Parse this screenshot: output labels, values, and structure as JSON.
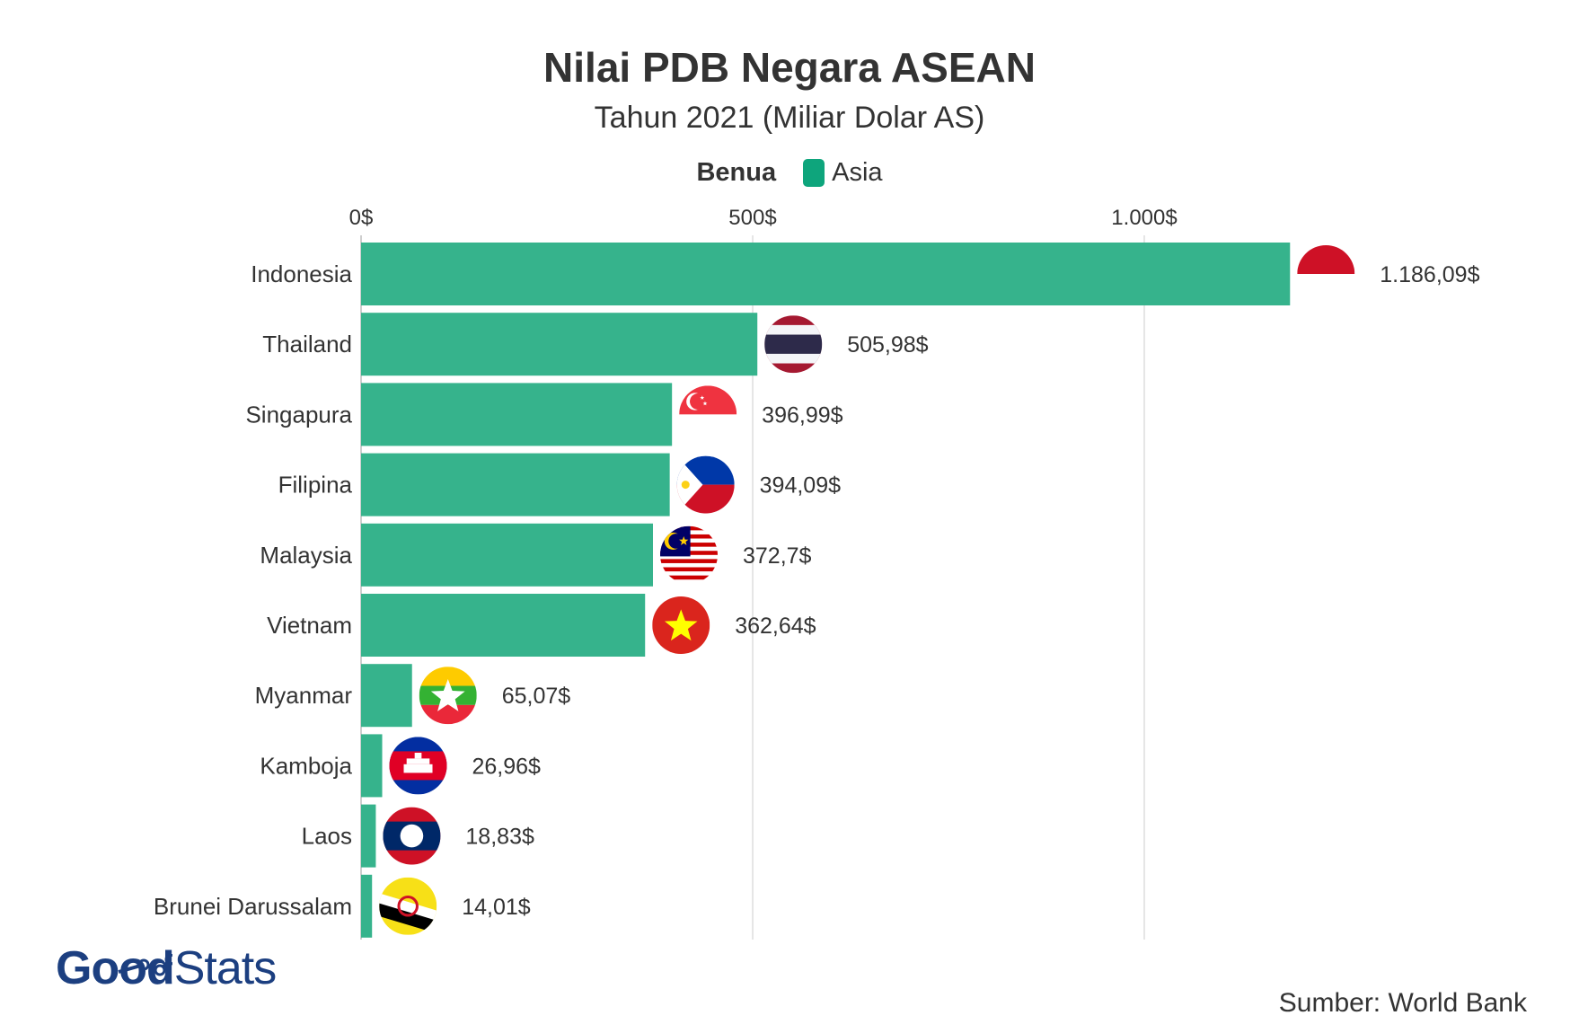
{
  "chart_data": {
    "type": "bar",
    "orientation": "horizontal",
    "title": "Nilai PDB Negara ASEAN",
    "subtitle": "Tahun 2021 (Miliar Dolar AS)",
    "legend": {
      "title": "Benua",
      "entries": [
        {
          "label": "Asia",
          "color": "#36b38c"
        }
      ],
      "position": "top-center"
    },
    "x_axis": {
      "range": [
        0,
        1200
      ],
      "ticks": [
        0,
        500,
        1000
      ],
      "tick_labels": [
        "0$",
        "500$",
        "1.000$"
      ],
      "position": "top",
      "grid": true
    },
    "categories": [
      "Indonesia",
      "Thailand",
      "Singapura",
      "Filipina",
      "Malaysia",
      "Vietnam",
      "Myanmar",
      "Kamboja",
      "Laos",
      "Brunei Darussalam"
    ],
    "values": [
      1186.09,
      505.98,
      396.99,
      394.09,
      372.7,
      362.64,
      65.07,
      26.96,
      18.83,
      14.01
    ],
    "value_labels": [
      "1.186,09$",
      "505,98$",
      "396,99$",
      "394,09$",
      "372,7$",
      "362,64$",
      "65,07$",
      "26,96$",
      "18,83$",
      "14,01$"
    ],
    "flag_icons": [
      "indonesia-flag-icon",
      "thailand-flag-icon",
      "singapore-flag-icon",
      "philippines-flag-icon",
      "malaysia-flag-icon",
      "vietnam-flag-icon",
      "myanmar-flag-icon",
      "cambodia-flag-icon",
      "laos-flag-icon",
      "brunei-flag-icon"
    ],
    "bar_color": "#36b38c"
  },
  "footer": {
    "logo_good": "Good",
    "logo_stats": "Stats",
    "source": "Sumber: World Bank"
  }
}
